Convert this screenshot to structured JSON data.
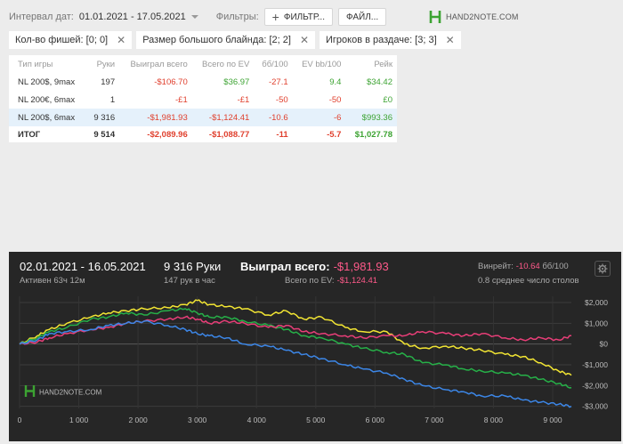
{
  "toolbar": {
    "interval_label": "Интервал дат:",
    "interval_value": "01.01.2021 - 17.05.2021",
    "filters_label": "Фильтры:",
    "filter_button": "ФИЛЬТР...",
    "file_button": "ФАЙЛ..."
  },
  "logo": {
    "text": "HAND2NOTE.COM"
  },
  "chips": [
    {
      "label": "Кол-во фишей: [0; 0]"
    },
    {
      "label": "Размер большого блайнда: [2; 2]"
    },
    {
      "label": "Игроков в раздаче: [3; 3]"
    }
  ],
  "table": {
    "headers": [
      "Тип игры",
      "Руки",
      "Выиграл всего",
      "Всего по EV",
      "бб/100",
      "EV bb/100",
      "Рейк"
    ],
    "rows": [
      [
        "NL 200$, 9max",
        "197",
        "-$106.70",
        "$36.97",
        "-27.1",
        "9.4",
        "$34.42"
      ],
      [
        "NL 200€, 6max",
        "1",
        "-£1",
        "-£1",
        "-50",
        "-50",
        "£0"
      ],
      [
        "NL 200$, 6max",
        "9 316",
        "-$1,981.93",
        "-$1,124.41",
        "-10.6",
        "-6",
        "$993.36"
      ]
    ],
    "total": [
      "ИТОГ",
      "9 514",
      "-$2,089.96",
      "-$1,088.77",
      "-11",
      "-5.7",
      "$1,027.78"
    ]
  },
  "summary": {
    "period": "02.01.2021 - 16.05.2021",
    "active": "Активен 63ч 12м",
    "hands": "9 316 Руки",
    "hands_per_hour": "147 рук в час",
    "won_label": "Выиграл всего:",
    "won_value": "-$1,981.93",
    "ev_label": "Всего по EV:",
    "ev_value": "-$1,124.41",
    "winrate_label": "Винрейт:",
    "winrate_value": "-10.64",
    "winrate_unit": "бб/100",
    "tables": "0.8 среднее число столов"
  },
  "chart_data": {
    "type": "line",
    "xlim": [
      0,
      9316
    ],
    "ylim": [
      -3100,
      2300
    ],
    "x_ticks": [
      0,
      1000,
      2000,
      3000,
      4000,
      5000,
      6000,
      7000,
      8000,
      9000
    ],
    "x_tick_labels": [
      "0",
      "1 000",
      "2 000",
      "3 000",
      "4 000",
      "5 000",
      "6 000",
      "7 000",
      "8 000",
      "9 000"
    ],
    "y_ticks": [
      2000,
      1000,
      0,
      -1000,
      -2000,
      -3000
    ],
    "y_tick_labels": [
      "$2,000",
      "$1,000",
      "$0",
      "-$1,000",
      "-$2,000",
      "-$3,000"
    ],
    "grid": true,
    "watermark": "HAND2NOTE.COM",
    "series": [
      {
        "color": "#f2e533",
        "x": [
          0,
          300,
          500,
          800,
          1200,
          1500,
          1800,
          2100,
          2500,
          2800,
          3000,
          3200,
          3500,
          3800,
          4200,
          4500,
          4800,
          5100,
          5500,
          5800,
          6200,
          6500,
          6800,
          7200,
          7500,
          7800,
          8200,
          8500,
          8800,
          9100,
          9316
        ],
        "values": [
          0,
          400,
          700,
          1000,
          1300,
          1500,
          1600,
          1700,
          1750,
          1900,
          2100,
          1900,
          1800,
          1700,
          1400,
          1600,
          1200,
          1300,
          800,
          600,
          600,
          0,
          -200,
          -100,
          -200,
          -300,
          -500,
          -600,
          -900,
          -1300,
          -1500
        ]
      },
      {
        "color": "#26b048",
        "x": [
          0,
          300,
          500,
          800,
          1200,
          1500,
          1800,
          2100,
          2500,
          2800,
          3000,
          3200,
          3500,
          3800,
          4200,
          4500,
          4800,
          5100,
          5500,
          5800,
          6200,
          6500,
          6800,
          7200,
          7500,
          7800,
          8200,
          8500,
          8800,
          9100,
          9316
        ],
        "values": [
          0,
          300,
          600,
          800,
          1200,
          1300,
          1500,
          1400,
          1600,
          1700,
          1500,
          1300,
          1300,
          1100,
          900,
          700,
          400,
          300,
          0,
          -200,
          -400,
          -500,
          -900,
          -1000,
          -1200,
          -1300,
          -1400,
          -1500,
          -1700,
          -1900,
          -2100
        ]
      },
      {
        "color": "#e83e78",
        "x": [
          0,
          300,
          500,
          800,
          1200,
          1500,
          1800,
          2100,
          2500,
          2800,
          3000,
          3200,
          3500,
          3800,
          4200,
          4500,
          4800,
          5100,
          5500,
          5800,
          6200,
          6500,
          6800,
          7200,
          7500,
          7800,
          8200,
          8500,
          8800,
          9100,
          9316
        ],
        "values": [
          0,
          100,
          300,
          500,
          700,
          800,
          1000,
          1100,
          1200,
          1300,
          1200,
          1000,
          1100,
          1000,
          800,
          900,
          600,
          500,
          400,
          300,
          400,
          400,
          600,
          500,
          400,
          500,
          300,
          200,
          300,
          200,
          400
        ]
      },
      {
        "color": "#3c86e6",
        "x": [
          0,
          300,
          500,
          800,
          1200,
          1500,
          1800,
          2100,
          2500,
          2800,
          3000,
          3200,
          3500,
          3800,
          4200,
          4500,
          4800,
          5100,
          5500,
          5800,
          6200,
          6500,
          6800,
          7200,
          7500,
          7800,
          8200,
          8500,
          8800,
          9100,
          9316
        ],
        "values": [
          0,
          200,
          500,
          600,
          700,
          900,
          1000,
          1100,
          900,
          700,
          500,
          400,
          300,
          0,
          -100,
          -300,
          -500,
          -700,
          -1000,
          -1200,
          -1400,
          -1700,
          -2000,
          -2200,
          -2300,
          -2500,
          -2500,
          -2700,
          -2800,
          -2900,
          -3000
        ]
      }
    ]
  }
}
